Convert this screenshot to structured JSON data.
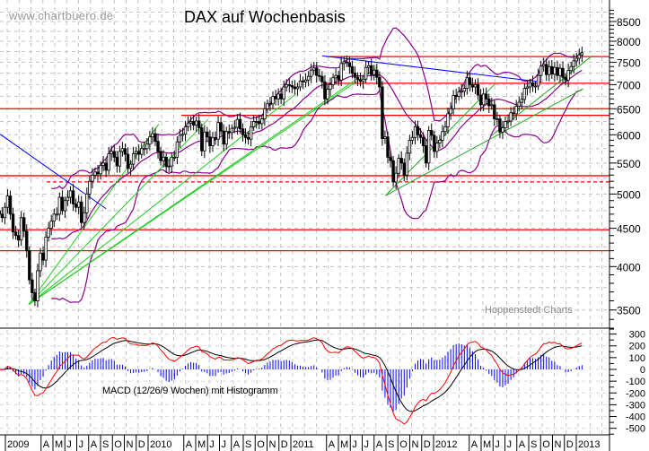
{
  "watermark": "www.chartbuero.de",
  "source_label": "Hoppenstedt Charts",
  "chart_data": {
    "type": "candlestick",
    "title": "DAX auf Wochenbasis",
    "subchart_label": "MACD (12/26/9 Wochen) mit Histogramm",
    "y_scale": "log",
    "ylim": [
      3300,
      8800
    ],
    "y_ticks": [
      8500,
      8000,
      7500,
      7000,
      6500,
      6000,
      5500,
      5000,
      4500,
      4000,
      3500
    ],
    "macd_ylim": [
      -550,
      350
    ],
    "macd_ticks": [
      300,
      200,
      100,
      0,
      -100,
      -200,
      -300,
      -400,
      -500
    ],
    "x_labels": [
      "2009",
      "A",
      "M",
      "J",
      "J",
      "A",
      "S",
      "O",
      "N",
      "D",
      "2010",
      "A",
      "M",
      "J",
      "J",
      "A",
      "S",
      "O",
      "N",
      "D",
      "2011",
      "A",
      "M",
      "J",
      "J",
      "A",
      "S",
      "O",
      "N",
      "D",
      "2012",
      "A",
      "M",
      "J",
      "J",
      "A",
      "S",
      "O",
      "N",
      "D",
      "2013"
    ],
    "first_week": "2008-12-12",
    "weekly_close": [
      4700,
      4650,
      4800,
      4970,
      4700,
      4450,
      4400,
      4340,
      4650,
      4460,
      4200,
      3840,
      3690,
      3600,
      3950,
      4170,
      4080,
      4380,
      4500,
      4600,
      4700,
      4700,
      4950,
      4750,
      4900,
      4950,
      5050,
      4850,
      4800,
      4880,
      4580,
      4720,
      5000,
      5200,
      5300,
      5350,
      5320,
      5460,
      5500,
      5380,
      5660,
      5700,
      5600,
      5450,
      5700,
      5750,
      5650,
      5410,
      5480,
      5660,
      5700,
      5650,
      5750,
      5750,
      5830,
      5960,
      6020,
      5880,
      5700,
      5540,
      5600,
      5440,
      5450,
      5600,
      5600,
      5870,
      5990,
      6010,
      6150,
      6220,
      6250,
      6180,
      6260,
      6130,
      5710,
      6050,
      5960,
      5800,
      5950,
      5920,
      6230,
      6070,
      5830,
      6060,
      6040,
      6120,
      6140,
      6290,
      6110,
      6000,
      5950,
      5920,
      6150,
      6250,
      6250,
      6210,
      6300,
      6500,
      6600,
      6600,
      6750,
      6700,
      6800,
      6700,
      6950,
      7000,
      6980,
      6950,
      6914,
      6950,
      7080,
      7060,
      7100,
      7180,
      7320,
      7370,
      7200,
      7180,
      7060,
      6700,
      6900,
      7000,
      7150,
      7200,
      7100,
      7470,
      7510,
      7490,
      7400,
      7250,
      7160,
      7110,
      7070,
      7120,
      7380,
      7420,
      7220,
      7320,
      7160,
      6950,
      5930,
      5960,
      5600,
      5540,
      5190,
      5330,
      5580,
      5500,
      5300,
      5670,
      5900,
      5950,
      6150,
      6000,
      5950,
      5800,
      5500,
      6080,
      5990,
      5700,
      5850,
      5900,
      6060,
      6150,
      6400,
      6500,
      6770,
      6750,
      6850,
      6860,
      6920,
      7150,
      7000,
      6950,
      7000,
      6780,
      6580,
      6800,
      6700,
      6560,
      6580,
      6300,
      6300,
      6050,
      6130,
      6250,
      6260,
      6420,
      6400,
      6550,
      6630,
      6690,
      6920,
      6950,
      7040,
      6970,
      6970,
      7200,
      7410,
      7450,
      7220,
      7400,
      7230,
      7380,
      7200,
      7360,
      7160,
      7100,
      7310,
      7400,
      7530,
      7590,
      7670,
      7720
    ],
    "indicators": {
      "bollinger": {
        "period": 20,
        "stddev": 2,
        "color": "#8b008b"
      },
      "macd": {
        "fast": 12,
        "slow": 26,
        "signal": 9,
        "macd_color": "#ff0000",
        "signal_color": "#000000",
        "histogram_color": "#0000ff"
      }
    },
    "horizontal_lines": [
      {
        "value": 7630,
        "from": "2011-03-28",
        "style": "solid"
      },
      {
        "value": 7030,
        "from": "2011-03-28",
        "style": "solid"
      },
      {
        "value": 6500,
        "from": "2008-12-01",
        "style": "solid"
      },
      {
        "value": 6370,
        "from": "2010-03-23",
        "style": "solid"
      },
      {
        "value": 5290,
        "from": "2008-12-01",
        "style": "solid"
      },
      {
        "value": 5190,
        "from": "2009-04-12",
        "style": "dashed"
      },
      {
        "value": 4480,
        "from": "2008-12-01",
        "style": "solid"
      },
      {
        "value": 4200,
        "from": "2008-12-01",
        "style": "solid"
      }
    ],
    "hline_color": "#ff0000",
    "trendlines": [
      {
        "color": "#0000ff",
        "from": [
          "2008-12-14",
          6010
        ],
        "to": [
          "2009-09-11",
          4780
        ]
      },
      {
        "color": "#0000ff",
        "from": [
          "2011-03-18",
          7650
        ],
        "to": [
          "2012-09-26",
          7060
        ]
      },
      {
        "color": "#22cc22",
        "from": [
          "2009-02-25",
          3560
        ],
        "to": [
          "2010-01-24",
          6200
        ]
      },
      {
        "color": "#22cc22",
        "from": [
          "2009-02-25",
          3560
        ],
        "to": [
          "2010-05-30",
          6290
        ]
      },
      {
        "color": "#22cc22",
        "from": [
          "2009-02-25",
          3560
        ],
        "to": [
          "2011-01-10",
          6800
        ]
      },
      {
        "color": "#22cc22",
        "from": [
          "2009-02-25",
          3560
        ],
        "to": [
          "2011-06-08",
          7080
        ]
      },
      {
        "color": "#22cc22",
        "from": [
          "2009-02-25",
          3560
        ],
        "to": [
          "2011-08-04",
          7370
        ]
      },
      {
        "color": "#22aa22",
        "from": [
          "2011-08-27",
          4975
        ],
        "to": [
          "2012-06-05",
          7040
        ]
      },
      {
        "color": "#22aa22",
        "from": [
          "2011-08-27",
          4975
        ],
        "to": [
          "2013-01-14",
          6910
        ]
      },
      {
        "color": "#22aa22",
        "from": [
          "2012-05-24",
          5980
        ],
        "to": [
          "2013-02-06",
          7650
        ]
      }
    ],
    "grid": true
  }
}
